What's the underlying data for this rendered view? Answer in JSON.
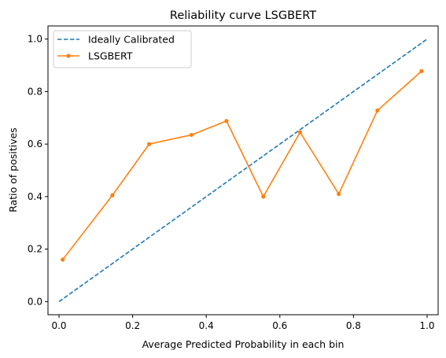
{
  "chart_data": {
    "type": "line",
    "title": "Reliability curve LSGBERT",
    "xlabel": "Average Predicted Probability in each bin",
    "ylabel": "Ratio of positives",
    "xlim": [
      -0.03,
      1.03
    ],
    "ylim": [
      -0.05,
      1.05
    ],
    "xticks": [
      0.0,
      0.2,
      0.4,
      0.6,
      0.8,
      1.0
    ],
    "yticks": [
      0.0,
      0.2,
      0.4,
      0.6,
      0.8,
      1.0
    ],
    "grid": false,
    "legend_position": "upper-left",
    "series": [
      {
        "name": "Ideally Calibrated",
        "style": "dashed",
        "color": "#1f77b4",
        "x": [
          0.0,
          1.0
        ],
        "y": [
          0.0,
          1.0
        ]
      },
      {
        "name": "LSGBERT",
        "style": "solid-marker",
        "color": "#ff7f0e",
        "x": [
          0.01,
          0.145,
          0.245,
          0.36,
          0.455,
          0.555,
          0.655,
          0.76,
          0.865,
          0.985
        ],
        "y": [
          0.16,
          0.405,
          0.6,
          0.635,
          0.688,
          0.4,
          0.645,
          0.41,
          0.728,
          0.878
        ]
      }
    ]
  }
}
